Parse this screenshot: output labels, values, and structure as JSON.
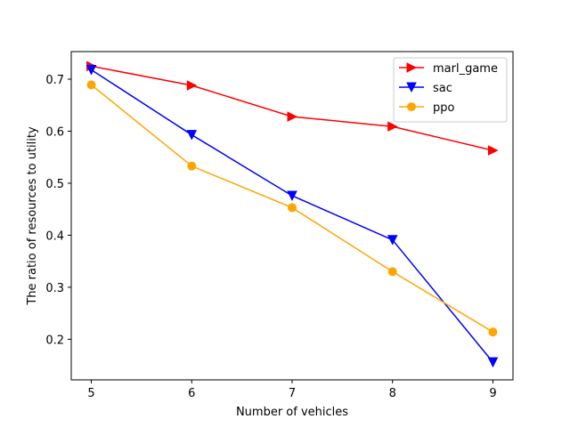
{
  "chart_data": {
    "type": "line",
    "title": "",
    "xlabel": "Number of vehicles",
    "ylabel": "The ratio of resources to utility",
    "x": [
      5,
      6,
      7,
      8,
      9
    ],
    "xlim": [
      4.8,
      9.2
    ],
    "ylim": [
      0.122,
      0.753
    ],
    "xticks": [
      5,
      6,
      7,
      8,
      9
    ],
    "yticks": [
      0.2,
      0.3,
      0.4,
      0.5,
      0.6,
      0.7
    ],
    "ytick_labels": [
      "0.2",
      "0.3",
      "0.4",
      "0.5",
      "0.6",
      "0.7"
    ],
    "grid": false,
    "legend_position": "top-right",
    "series": [
      {
        "name": "marl_game",
        "values": [
          0.725,
          0.688,
          0.628,
          0.609,
          0.563
        ],
        "color": "#ff0000",
        "marker": "triangle-right"
      },
      {
        "name": "sac",
        "values": [
          0.718,
          0.593,
          0.476,
          0.391,
          0.156
        ],
        "color": "#0000ff",
        "marker": "triangle-down"
      },
      {
        "name": "ppo",
        "values": [
          0.689,
          0.533,
          0.453,
          0.33,
          0.214
        ],
        "color": "#ffa500",
        "marker": "circle"
      }
    ]
  }
}
